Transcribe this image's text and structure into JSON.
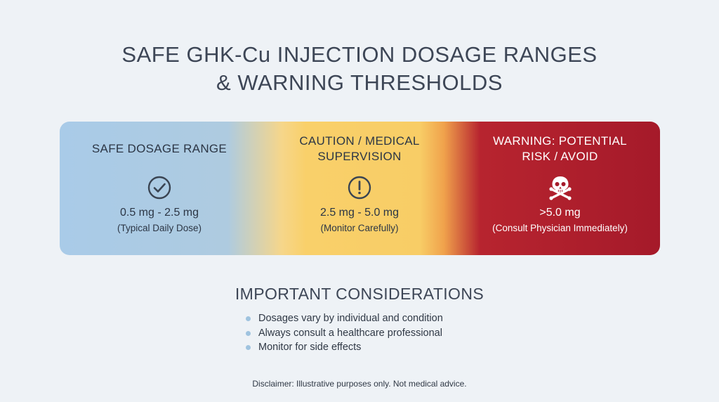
{
  "title": {
    "line1": "SAFE GHK-Cu INJECTION DOSAGE RANGES",
    "line2": "& WARNING THRESHOLDS"
  },
  "zones": {
    "safe": {
      "title": "SAFE DOSAGE RANGE",
      "icon": "check-circle-icon",
      "range": "0.5 mg - 2.5 mg",
      "note": "(Typical Daily Dose)",
      "color": "#a9cbe8"
    },
    "caution": {
      "title_line1": "CAUTION / MEDICAL",
      "title_line2": "SUPERVISION",
      "icon": "exclamation-circle-icon",
      "range": "2.5 mg - 5.0 mg",
      "note": "(Monitor Carefully)",
      "color": "#f9d06a"
    },
    "warning": {
      "title_line1": "WARNING: POTENTIAL",
      "title_line2": "RISK / AVOID",
      "icon": "skull-crossbones-icon",
      "range": ">5.0 mg",
      "note": "(Consult Physician Immediately)",
      "color": "#a51a2a"
    }
  },
  "considerations": {
    "title": "IMPORTANT CONSIDERATIONS",
    "items": [
      "Dosages vary by individual and condition",
      "Always consult a healthcare professional",
      "Monitor for side effects"
    ]
  },
  "disclaimer": "Disclaimer: Illustrative purposes only. Not medical advice."
}
